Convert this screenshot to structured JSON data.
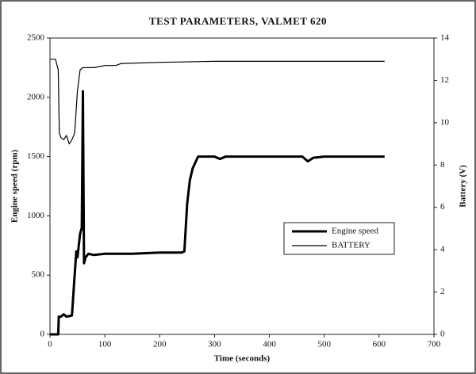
{
  "chart_data": {
    "type": "line",
    "title": "TEST PARAMETERS, VALMET 620",
    "x_label": "Time (seconds)",
    "y_label": "Engine speed (rpm)",
    "y2_label": "Battery (V)",
    "xlim": [
      0,
      700
    ],
    "xticks": [
      0,
      100,
      200,
      300,
      400,
      500,
      600,
      700
    ],
    "ylim": [
      0,
      2500
    ],
    "yticks": [
      0,
      500,
      1000,
      1500,
      2000,
      2500
    ],
    "y2lim": [
      0,
      14
    ],
    "y2ticks": [
      0,
      2,
      4,
      6,
      8,
      10,
      12,
      14
    ],
    "grid": false,
    "legend": "right",
    "series": [
      {
        "name": "Engine speed",
        "color": "#000000",
        "x": [
          0,
          10,
          15,
          16,
          20,
          25,
          30,
          40,
          45,
          48,
          50,
          55,
          58,
          60,
          62,
          65,
          70,
          80,
          100,
          150,
          200,
          240,
          245,
          250,
          255,
          260,
          270,
          280,
          300,
          310,
          320,
          400,
          460,
          470,
          480,
          500,
          610
        ],
        "values": [
          0,
          0,
          0,
          150,
          150,
          170,
          150,
          160,
          500,
          700,
          650,
          850,
          900,
          2050,
          600,
          650,
          680,
          670,
          680,
          680,
          690,
          690,
          700,
          1100,
          1300,
          1400,
          1500,
          1500,
          1500,
          1480,
          1500,
          1500,
          1500,
          1460,
          1490,
          1500,
          1500
        ]
      },
      {
        "name": "BATTERY",
        "color": "#000000",
        "axis": "y2",
        "x": [
          0,
          10,
          12,
          15,
          17,
          20,
          25,
          30,
          35,
          40,
          45,
          50,
          55,
          60,
          80,
          100,
          120,
          130,
          200,
          300,
          610
        ],
        "values": [
          13.0,
          13.0,
          12.8,
          12.5,
          9.5,
          9.3,
          9.2,
          9.4,
          9.0,
          9.2,
          9.5,
          11.5,
          12.5,
          12.6,
          12.6,
          12.7,
          12.7,
          12.8,
          12.85,
          12.9,
          12.9
        ]
      }
    ]
  }
}
